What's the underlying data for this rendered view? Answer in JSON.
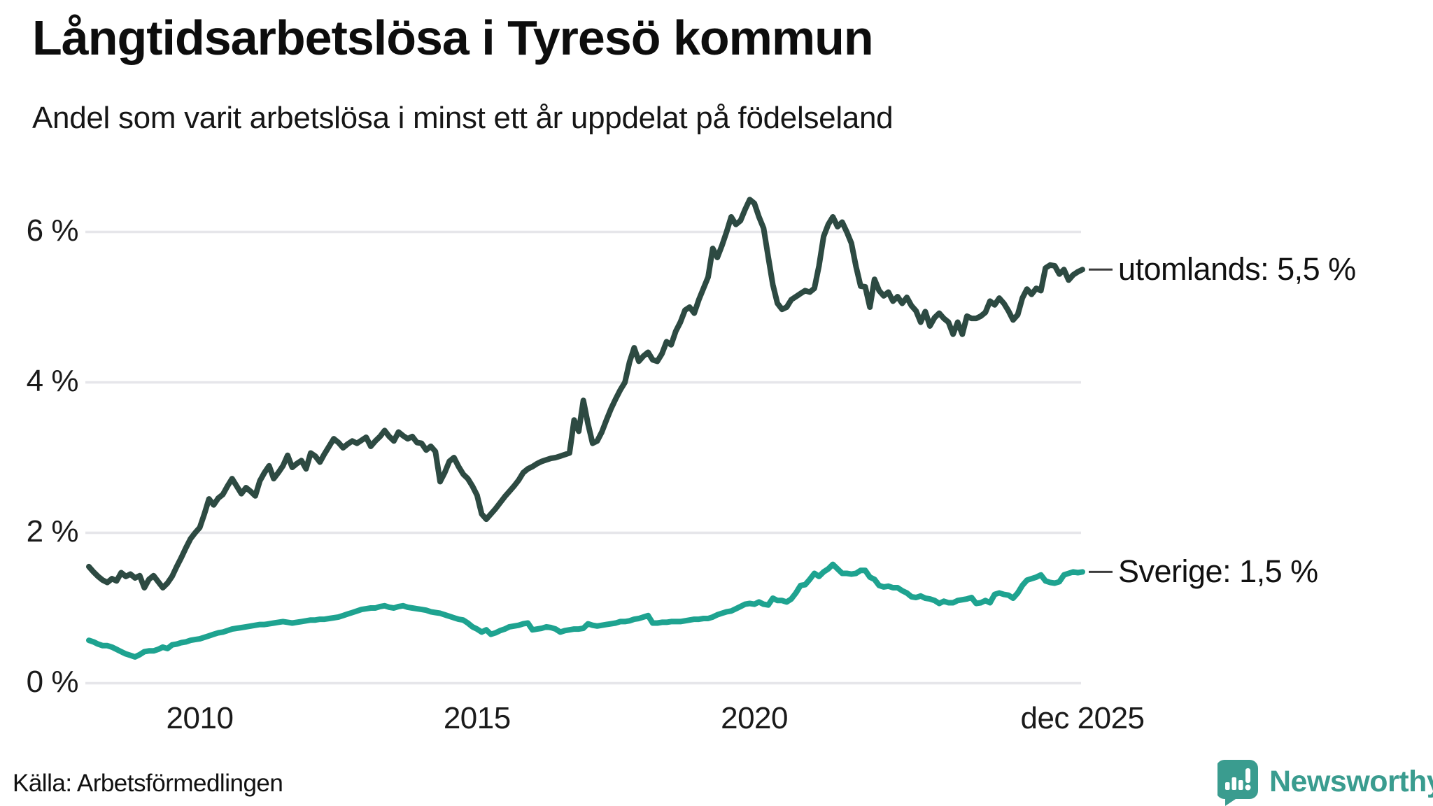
{
  "header": {
    "title": "Långtidsarbetslösa i Tyresö kommun",
    "subtitle": "Andel som varit arbetslösa i minst ett år uppdelat på födelseland"
  },
  "chart_data": {
    "type": "line",
    "title": "Långtidsarbetslösa i Tyresö kommun",
    "subtitle": "Andel som varit arbetslösa i minst ett år uppdelat på födelseland",
    "unit": "%",
    "x_start_year": 2008,
    "x_end": "dec 2025",
    "points_per_year": 12,
    "xlim": [
      2008.0,
      2025.9167
    ],
    "ylim": [
      0,
      6.5
    ],
    "grid": true,
    "legend_position": "end-of-line-labels",
    "x_ticks": [
      {
        "label": "2010",
        "year": 2010.0
      },
      {
        "label": "2015",
        "year": 2015.0
      },
      {
        "label": "2020",
        "year": 2020.0
      },
      {
        "label": "dec 2025",
        "year": 2025.9167
      }
    ],
    "y_ticks": [
      {
        "label": "0 %",
        "value": 0
      },
      {
        "label": "2 %",
        "value": 2
      },
      {
        "label": "4 %",
        "value": 4
      },
      {
        "label": "6 %",
        "value": 6
      }
    ],
    "series": [
      {
        "name": "utomlands",
        "label": "utomlands: 5,5 %",
        "end_value_label": "5,5 %",
        "color": "#2d4a42",
        "values": [
          1.55,
          1.48,
          1.42,
          1.37,
          1.34,
          1.39,
          1.36,
          1.47,
          1.42,
          1.45,
          1.4,
          1.43,
          1.27,
          1.38,
          1.43,
          1.35,
          1.27,
          1.33,
          1.42,
          1.55,
          1.67,
          1.8,
          1.92,
          2.0,
          2.07,
          2.25,
          2.45,
          2.37,
          2.46,
          2.51,
          2.62,
          2.72,
          2.62,
          2.52,
          2.6,
          2.55,
          2.49,
          2.69,
          2.8,
          2.89,
          2.72,
          2.8,
          2.89,
          3.03,
          2.87,
          2.92,
          2.96,
          2.85,
          3.06,
          3.02,
          2.94,
          3.05,
          3.15,
          3.25,
          3.2,
          3.13,
          3.18,
          3.22,
          3.19,
          3.23,
          3.27,
          3.15,
          3.22,
          3.28,
          3.36,
          3.28,
          3.22,
          3.34,
          3.29,
          3.25,
          3.28,
          3.2,
          3.19,
          3.1,
          3.15,
          3.08,
          2.68,
          2.8,
          2.95,
          3.0,
          2.88,
          2.78,
          2.72,
          2.62,
          2.5,
          2.25,
          2.18,
          2.25,
          2.32,
          2.4,
          2.48,
          2.55,
          2.62,
          2.7,
          2.8,
          2.85,
          2.88,
          2.92,
          2.95,
          2.97,
          2.99,
          3.0,
          3.02,
          3.04,
          3.06,
          3.5,
          3.35,
          3.76,
          3.45,
          3.19,
          3.22,
          3.34,
          3.5,
          3.65,
          3.78,
          3.9,
          4.0,
          4.27,
          4.46,
          4.28,
          4.35,
          4.4,
          4.3,
          4.28,
          4.38,
          4.54,
          4.5,
          4.68,
          4.8,
          4.96,
          5.0,
          4.92,
          5.1,
          5.25,
          5.4,
          5.78,
          5.66,
          5.82,
          6.0,
          6.2,
          6.1,
          6.15,
          6.3,
          6.43,
          6.38,
          6.2,
          6.05,
          5.67,
          5.3,
          5.05,
          4.97,
          5.0,
          5.1,
          5.14,
          5.18,
          5.22,
          5.2,
          5.25,
          5.55,
          5.94,
          6.1,
          6.2,
          6.07,
          6.13,
          6.0,
          5.85,
          5.54,
          5.28,
          5.27,
          5.0,
          5.37,
          5.22,
          5.15,
          5.2,
          5.08,
          5.14,
          5.05,
          5.13,
          5.02,
          4.95,
          4.8,
          4.94,
          4.75,
          4.86,
          4.92,
          4.85,
          4.8,
          4.64,
          4.8,
          4.64,
          4.88,
          4.85,
          4.85,
          4.88,
          4.93,
          5.08,
          5.03,
          5.12,
          5.05,
          4.95,
          4.83,
          4.9,
          5.12,
          5.24,
          5.17,
          5.25,
          5.22,
          5.52,
          5.56,
          5.55,
          5.44,
          5.5,
          5.36,
          5.43,
          5.47,
          5.5
        ]
      },
      {
        "name": "Sverige",
        "label": "Sverige: 1,5 %",
        "end_value_label": "1,5 %",
        "color": "#1ea390",
        "values": [
          0.57,
          0.55,
          0.52,
          0.5,
          0.5,
          0.48,
          0.45,
          0.42,
          0.39,
          0.37,
          0.35,
          0.38,
          0.42,
          0.43,
          0.43,
          0.45,
          0.48,
          0.46,
          0.51,
          0.52,
          0.54,
          0.55,
          0.57,
          0.58,
          0.59,
          0.61,
          0.63,
          0.65,
          0.67,
          0.68,
          0.7,
          0.72,
          0.73,
          0.74,
          0.75,
          0.76,
          0.77,
          0.78,
          0.78,
          0.79,
          0.8,
          0.81,
          0.82,
          0.81,
          0.8,
          0.81,
          0.82,
          0.83,
          0.84,
          0.84,
          0.85,
          0.85,
          0.86,
          0.87,
          0.88,
          0.9,
          0.92,
          0.94,
          0.96,
          0.98,
          0.99,
          1.0,
          1.0,
          1.02,
          1.03,
          1.01,
          1.0,
          1.02,
          1.03,
          1.01,
          1.0,
          0.99,
          0.98,
          0.97,
          0.95,
          0.94,
          0.93,
          0.91,
          0.89,
          0.87,
          0.85,
          0.84,
          0.8,
          0.75,
          0.72,
          0.68,
          0.71,
          0.65,
          0.67,
          0.7,
          0.72,
          0.75,
          0.76,
          0.77,
          0.79,
          0.8,
          0.71,
          0.72,
          0.73,
          0.75,
          0.74,
          0.72,
          0.68,
          0.7,
          0.71,
          0.72,
          0.72,
          0.73,
          0.79,
          0.77,
          0.76,
          0.77,
          0.78,
          0.79,
          0.8,
          0.82,
          0.82,
          0.83,
          0.85,
          0.86,
          0.88,
          0.9,
          0.8,
          0.8,
          0.81,
          0.81,
          0.82,
          0.82,
          0.82,
          0.83,
          0.84,
          0.85,
          0.85,
          0.86,
          0.86,
          0.88,
          0.91,
          0.93,
          0.95,
          0.96,
          0.99,
          1.02,
          1.05,
          1.06,
          1.05,
          1.08,
          1.05,
          1.04,
          1.13,
          1.1,
          1.1,
          1.08,
          1.12,
          1.2,
          1.3,
          1.31,
          1.38,
          1.46,
          1.42,
          1.48,
          1.52,
          1.58,
          1.52,
          1.46,
          1.46,
          1.45,
          1.46,
          1.5,
          1.5,
          1.41,
          1.38,
          1.3,
          1.28,
          1.29,
          1.27,
          1.27,
          1.23,
          1.2,
          1.15,
          1.14,
          1.16,
          1.13,
          1.12,
          1.1,
          1.06,
          1.09,
          1.07,
          1.07,
          1.1,
          1.11,
          1.12,
          1.14,
          1.06,
          1.07,
          1.1,
          1.07,
          1.18,
          1.2,
          1.18,
          1.17,
          1.13,
          1.2,
          1.3,
          1.37,
          1.39,
          1.41,
          1.44,
          1.36,
          1.34,
          1.33,
          1.35,
          1.44,
          1.46,
          1.48,
          1.47,
          1.48
        ]
      }
    ],
    "colors": {
      "grid": "#e6e6ea",
      "axis_text": "#1a1a1a",
      "label_dash": "#3c3c3c"
    }
  },
  "footer": {
    "source": "Källa: Arbetsförmedlingen",
    "logo_text": "Newsworthy",
    "logo_color": "#3a9c8f"
  }
}
